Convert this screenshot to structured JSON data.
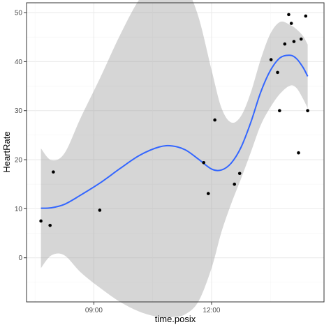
{
  "chart_data": {
    "type": "scatter",
    "xlabel": "time.posix",
    "ylabel": "HeartRate",
    "x_ticks": [
      "09:00",
      "12:00"
    ],
    "y_ticks": [
      0,
      10,
      20,
      30,
      40,
      50
    ],
    "xlim": [
      "07:17",
      "14:52"
    ],
    "ylim": [
      -9,
      52
    ],
    "grid": true,
    "points": [
      {
        "x": "07:39",
        "y": 7.5
      },
      {
        "x": "07:53",
        "y": 6.6
      },
      {
        "x": "07:58",
        "y": 17.5
      },
      {
        "x": "09:09",
        "y": 9.7
      },
      {
        "x": "11:48",
        "y": 19.4
      },
      {
        "x": "11:55",
        "y": 13.1
      },
      {
        "x": "12:05",
        "y": 28.1
      },
      {
        "x": "12:35",
        "y": 15.0
      },
      {
        "x": "12:43",
        "y": 17.2
      },
      {
        "x": "13:31",
        "y": 40.4
      },
      {
        "x": "13:41",
        "y": 37.8
      },
      {
        "x": "13:44",
        "y": 30.0
      },
      {
        "x": "13:52",
        "y": 43.6
      },
      {
        "x": "13:58",
        "y": 49.6
      },
      {
        "x": "14:02",
        "y": 47.8
      },
      {
        "x": "14:06",
        "y": 44.1
      },
      {
        "x": "14:13",
        "y": 21.4
      },
      {
        "x": "14:17",
        "y": 44.6
      },
      {
        "x": "14:24",
        "y": 49.3
      },
      {
        "x": "14:27",
        "y": 30.0
      }
    ],
    "smooth": {
      "x": [
        "07:39",
        "07:55",
        "08:15",
        "08:40",
        "09:10",
        "09:40",
        "10:10",
        "10:40",
        "11:00",
        "11:20",
        "11:40",
        "12:00",
        "12:15",
        "12:30",
        "12:45",
        "13:00",
        "13:15",
        "13:30",
        "13:45",
        "14:00",
        "14:10",
        "14:20",
        "14:27"
      ],
      "y": [
        10.1,
        10.2,
        10.9,
        12.8,
        15.3,
        18.2,
        20.9,
        22.6,
        22.8,
        22.0,
        20.1,
        18.1,
        17.9,
        19.3,
        22.5,
        27.6,
        33.7,
        38.2,
        40.8,
        41.3,
        40.6,
        38.8,
        37.0
      ],
      "ci_upper": [
        22.3,
        19.9,
        21.3,
        28.6,
        36.8,
        45.4,
        52.8,
        57.3,
        57.7,
        55.5,
        49.1,
        38.3,
        30.6,
        27.6,
        28.9,
        33.7,
        40.4,
        45.7,
        48.1,
        47.5,
        46.6,
        45.2,
        43.5
      ],
      "ci_lower": [
        -2.1,
        0.5,
        0.5,
        -3.0,
        -6.2,
        -9.0,
        -11.0,
        -12.1,
        -12.1,
        -11.5,
        -8.9,
        -2.1,
        5.2,
        11.0,
        16.1,
        21.5,
        27.0,
        30.7,
        33.5,
        35.1,
        34.6,
        32.4,
        30.5
      ]
    },
    "colors": {
      "line": "#3366FF",
      "ribbon": "#999999",
      "point": "#000000",
      "grid_major": "#EBEBEB",
      "grid_minor": "#F4F4F4",
      "panel_border": "#333333"
    }
  }
}
